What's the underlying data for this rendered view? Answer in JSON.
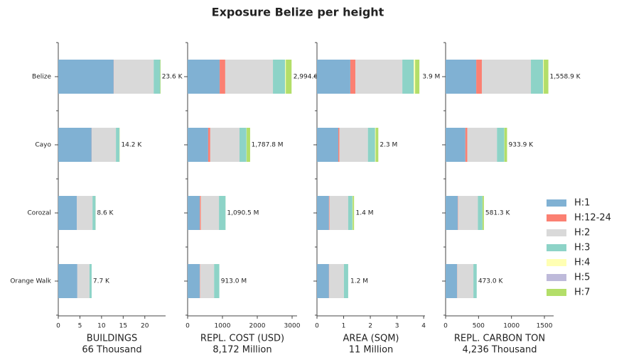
{
  "title": "Exposure Belize per height",
  "categories": [
    "Belize",
    "Cayo",
    "Corozal",
    "Orange Walk"
  ],
  "legend": [
    {
      "name": "H:1",
      "color": "#80b1d3"
    },
    {
      "name": "H:12-24",
      "color": "#fb8072"
    },
    {
      "name": "H:2",
      "color": "#d9d9d9"
    },
    {
      "name": "H:3",
      "color": "#8dd3c7"
    },
    {
      "name": "H:4",
      "color": "#ffffb3"
    },
    {
      "name": "H:5",
      "color": "#bebada"
    },
    {
      "name": "H:7",
      "color": "#b3de69"
    }
  ],
  "chart_data": [
    {
      "type": "bar",
      "xlabel": "BUILDINGS",
      "xsublabel": "66 Thousand",
      "xlim": [
        0,
        24.8
      ],
      "xticks": [
        0,
        5,
        10,
        15,
        20
      ],
      "series": [
        {
          "values": [
            12.8,
            7.7,
            4.3,
            4.4
          ]
        },
        {
          "values": [
            0.05,
            0.02,
            0.01,
            0.01
          ]
        },
        {
          "values": [
            9.2,
            5.6,
            3.6,
            2.8
          ]
        },
        {
          "values": [
            1.5,
            0.8,
            0.7,
            0.5
          ]
        },
        {
          "values": [
            0,
            0,
            0,
            0
          ]
        },
        {
          "values": [
            0,
            0,
            0,
            0
          ]
        },
        {
          "values": [
            0.1,
            0.05,
            0.02,
            0
          ]
        }
      ],
      "totals": [
        23.6,
        14.2,
        8.6,
        7.7
      ],
      "total_labels": [
        "23.6 K",
        "14.2 K",
        "8.6 K",
        "7.7 K"
      ]
    },
    {
      "type": "bar",
      "xlabel": "REPL. COST (USD)",
      "xsublabel": "8,172 Million",
      "xlim": [
        0,
        3143
      ],
      "xticks": [
        0,
        1000,
        2000,
        3000
      ],
      "series": [
        {
          "values": [
            920,
            590,
            350,
            350
          ]
        },
        {
          "values": [
            160,
            60,
            30,
            10
          ]
        },
        {
          "values": [
            1370,
            840,
            520,
            400
          ]
        },
        {
          "values": [
            350,
            200,
            190,
            150
          ]
        },
        {
          "values": [
            20,
            5,
            2,
            0
          ]
        },
        {
          "values": [
            0,
            0,
            0,
            0
          ]
        },
        {
          "values": [
            165,
            100,
            0,
            0
          ]
        }
      ],
      "totals": [
        2994.6,
        1787.8,
        1090.5,
        913.0
      ],
      "total_labels": [
        "2,994.6",
        "1,787.8 M",
        "1,090.5 M",
        "913.0 M"
      ]
    },
    {
      "type": "bar",
      "xlabel": "AREA (SQM)",
      "xsublabel": "11 Million",
      "xlim": [
        0,
        4.05
      ],
      "xticks": [
        0,
        1,
        2,
        3,
        4
      ],
      "series": [
        {
          "values": [
            1.25,
            0.8,
            0.45,
            0.45
          ]
        },
        {
          "values": [
            0.19,
            0.04,
            0.02,
            0.01
          ]
        },
        {
          "values": [
            1.76,
            1.07,
            0.7,
            0.55
          ]
        },
        {
          "values": [
            0.43,
            0.27,
            0.16,
            0.16
          ]
        },
        {
          "values": [
            0.05,
            0.02,
            0.01,
            0
          ]
        },
        {
          "values": [
            0,
            0,
            0,
            0
          ]
        },
        {
          "values": [
            0.16,
            0.1,
            0.05,
            0
          ]
        }
      ],
      "totals": [
        3.9,
        2.3,
        1.4,
        1.2
      ],
      "total_labels": [
        "3.9 M",
        "2.3 M",
        "1.4 M",
        "1.2 M"
      ]
    },
    {
      "type": "bar",
      "xlabel": "REPL. CARBON TON",
      "xsublabel": "4,236 Thousand",
      "xlim": [
        0,
        1640
      ],
      "xticks": [
        0,
        500,
        1000,
        1500
      ],
      "series": [
        {
          "values": [
            465,
            300,
            185,
            175
          ]
        },
        {
          "values": [
            85,
            30,
            5,
            2
          ]
        },
        {
          "values": [
            745,
            450,
            300,
            245
          ]
        },
        {
          "values": [
            185,
            110,
            70,
            50
          ]
        },
        {
          "values": [
            10,
            3,
            1,
            0
          ]
        },
        {
          "values": [
            0,
            0,
            0,
            0
          ]
        },
        {
          "values": [
            70,
            40,
            20,
            0
          ]
        }
      ],
      "totals": [
        1558.9,
        933.9,
        581.3,
        473.0
      ],
      "total_labels": [
        "1,558.9 K",
        "933.9 K",
        "581.3 K",
        "473.0 K"
      ]
    }
  ]
}
